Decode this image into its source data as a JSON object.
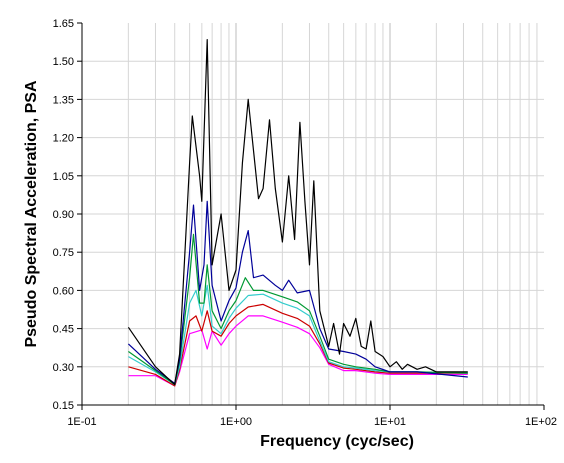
{
  "chart_data": {
    "type": "line",
    "xlabel": "Frequency (cyc/sec)",
    "ylabel": "Pseudo Spectral Acceleration, PSA",
    "x_scale": "log",
    "xlim": [
      0.1,
      100
    ],
    "ylim": [
      0.15,
      1.65
    ],
    "x_ticks": [
      0.1,
      1,
      10,
      100
    ],
    "x_tick_labels": [
      "1E-01",
      "1E+00",
      "1E+01",
      "1E+02"
    ],
    "y_ticks": [
      0.15,
      0.3,
      0.45,
      0.6,
      0.75,
      0.9,
      1.05,
      1.2,
      1.35,
      1.5,
      1.65
    ],
    "y_tick_labels": [
      "0.15",
      "0.30",
      "0.45",
      "0.60",
      "0.75",
      "0.90",
      "1.05",
      "1.20",
      "1.35",
      "1.50",
      "1.65"
    ],
    "grid": true,
    "series": [
      {
        "color": "#ff00ff",
        "points": [
          [
            0.2,
            0.265
          ],
          [
            0.3,
            0.265
          ],
          [
            0.4,
            0.225
          ],
          [
            0.43,
            0.28
          ],
          [
            0.5,
            0.43
          ],
          [
            0.6,
            0.445
          ],
          [
            0.65,
            0.37
          ],
          [
            0.7,
            0.44
          ],
          [
            0.8,
            0.385
          ],
          [
            0.9,
            0.43
          ],
          [
            1.0,
            0.46
          ],
          [
            1.2,
            0.5
          ],
          [
            1.5,
            0.5
          ],
          [
            2.0,
            0.475
          ],
          [
            2.5,
            0.455
          ],
          [
            3.0,
            0.43
          ],
          [
            3.5,
            0.375
          ],
          [
            4.0,
            0.31
          ],
          [
            5.0,
            0.285
          ],
          [
            6.0,
            0.285
          ],
          [
            8.0,
            0.275
          ],
          [
            10.0,
            0.27
          ],
          [
            15.0,
            0.27
          ],
          [
            20.0,
            0.27
          ],
          [
            32.0,
            0.27
          ]
        ]
      },
      {
        "color": "#cc0000",
        "points": [
          [
            0.2,
            0.3
          ],
          [
            0.3,
            0.27
          ],
          [
            0.4,
            0.225
          ],
          [
            0.43,
            0.29
          ],
          [
            0.5,
            0.48
          ],
          [
            0.55,
            0.5
          ],
          [
            0.6,
            0.44
          ],
          [
            0.65,
            0.52
          ],
          [
            0.7,
            0.44
          ],
          [
            0.8,
            0.42
          ],
          [
            0.9,
            0.47
          ],
          [
            1.0,
            0.5
          ],
          [
            1.2,
            0.535
          ],
          [
            1.5,
            0.545
          ],
          [
            2.0,
            0.51
          ],
          [
            2.5,
            0.49
          ],
          [
            3.0,
            0.46
          ],
          [
            3.5,
            0.39
          ],
          [
            4.0,
            0.315
          ],
          [
            5.0,
            0.295
          ],
          [
            6.0,
            0.29
          ],
          [
            8.0,
            0.28
          ],
          [
            10.0,
            0.275
          ],
          [
            15.0,
            0.275
          ],
          [
            32.0,
            0.275
          ]
        ]
      },
      {
        "color": "#33cccc",
        "points": [
          [
            0.2,
            0.34
          ],
          [
            0.3,
            0.28
          ],
          [
            0.4,
            0.23
          ],
          [
            0.43,
            0.3
          ],
          [
            0.5,
            0.55
          ],
          [
            0.55,
            0.6
          ],
          [
            0.6,
            0.5
          ],
          [
            0.65,
            0.62
          ],
          [
            0.7,
            0.46
          ],
          [
            0.8,
            0.43
          ],
          [
            0.9,
            0.49
          ],
          [
            1.0,
            0.53
          ],
          [
            1.2,
            0.58
          ],
          [
            1.5,
            0.585
          ],
          [
            2.0,
            0.55
          ],
          [
            2.5,
            0.53
          ],
          [
            3.0,
            0.5
          ],
          [
            3.5,
            0.4
          ],
          [
            4.0,
            0.32
          ],
          [
            5.0,
            0.3
          ],
          [
            6.0,
            0.295
          ],
          [
            8.0,
            0.285
          ],
          [
            10.0,
            0.28
          ],
          [
            15.0,
            0.28
          ],
          [
            32.0,
            0.275
          ]
        ]
      },
      {
        "color": "#009933",
        "points": [
          [
            0.2,
            0.36
          ],
          [
            0.3,
            0.285
          ],
          [
            0.4,
            0.23
          ],
          [
            0.43,
            0.32
          ],
          [
            0.5,
            0.65
          ],
          [
            0.53,
            0.82
          ],
          [
            0.58,
            0.55
          ],
          [
            0.62,
            0.55
          ],
          [
            0.65,
            0.7
          ],
          [
            0.7,
            0.52
          ],
          [
            0.8,
            0.45
          ],
          [
            0.9,
            0.52
          ],
          [
            1.0,
            0.56
          ],
          [
            1.15,
            0.65
          ],
          [
            1.3,
            0.6
          ],
          [
            1.5,
            0.6
          ],
          [
            2.0,
            0.575
          ],
          [
            2.5,
            0.555
          ],
          [
            3.0,
            0.52
          ],
          [
            3.5,
            0.42
          ],
          [
            4.0,
            0.33
          ],
          [
            5.0,
            0.31
          ],
          [
            6.0,
            0.3
          ],
          [
            8.0,
            0.29
          ],
          [
            10.0,
            0.28
          ],
          [
            15.0,
            0.28
          ],
          [
            32.0,
            0.275
          ]
        ]
      },
      {
        "color": "#000099",
        "points": [
          [
            0.2,
            0.39
          ],
          [
            0.3,
            0.29
          ],
          [
            0.4,
            0.235
          ],
          [
            0.43,
            0.33
          ],
          [
            0.5,
            0.75
          ],
          [
            0.53,
            0.935
          ],
          [
            0.58,
            0.6
          ],
          [
            0.62,
            0.7
          ],
          [
            0.65,
            0.95
          ],
          [
            0.7,
            0.62
          ],
          [
            0.8,
            0.48
          ],
          [
            0.9,
            0.56
          ],
          [
            1.0,
            0.61
          ],
          [
            1.1,
            0.75
          ],
          [
            1.2,
            0.835
          ],
          [
            1.3,
            0.65
          ],
          [
            1.5,
            0.66
          ],
          [
            1.8,
            0.62
          ],
          [
            2.0,
            0.6
          ],
          [
            2.2,
            0.64
          ],
          [
            2.5,
            0.59
          ],
          [
            3.0,
            0.6
          ],
          [
            3.5,
            0.45
          ],
          [
            4.0,
            0.37
          ],
          [
            5.0,
            0.36
          ],
          [
            6.0,
            0.35
          ],
          [
            7.0,
            0.33
          ],
          [
            8.0,
            0.3
          ],
          [
            10.0,
            0.28
          ],
          [
            15.0,
            0.28
          ],
          [
            32.0,
            0.26
          ]
        ]
      },
      {
        "color": "#000000",
        "points": [
          [
            0.2,
            0.455
          ],
          [
            0.3,
            0.3
          ],
          [
            0.4,
            0.23
          ],
          [
            0.43,
            0.35
          ],
          [
            0.5,
            1.1
          ],
          [
            0.52,
            1.285
          ],
          [
            0.58,
            1.05
          ],
          [
            0.6,
            0.95
          ],
          [
            0.65,
            1.585
          ],
          [
            0.7,
            0.7
          ],
          [
            0.8,
            0.9
          ],
          [
            0.9,
            0.6
          ],
          [
            1.0,
            0.68
          ],
          [
            1.1,
            1.1
          ],
          [
            1.2,
            1.35
          ],
          [
            1.4,
            0.96
          ],
          [
            1.5,
            1.0
          ],
          [
            1.65,
            1.27
          ],
          [
            1.8,
            1.0
          ],
          [
            2.0,
            0.79
          ],
          [
            2.2,
            1.05
          ],
          [
            2.4,
            0.8
          ],
          [
            2.6,
            1.26
          ],
          [
            2.8,
            0.95
          ],
          [
            3.0,
            0.7
          ],
          [
            3.2,
            1.03
          ],
          [
            3.5,
            0.52
          ],
          [
            4.0,
            0.38
          ],
          [
            4.3,
            0.47
          ],
          [
            4.7,
            0.35
          ],
          [
            5.0,
            0.47
          ],
          [
            5.5,
            0.42
          ],
          [
            6.0,
            0.49
          ],
          [
            6.5,
            0.38
          ],
          [
            7.0,
            0.37
          ],
          [
            7.5,
            0.48
          ],
          [
            8.0,
            0.36
          ],
          [
            9.0,
            0.34
          ],
          [
            10.0,
            0.3
          ],
          [
            11.0,
            0.32
          ],
          [
            12.0,
            0.29
          ],
          [
            13.0,
            0.31
          ],
          [
            15.0,
            0.29
          ],
          [
            17.0,
            0.3
          ],
          [
            20.0,
            0.28
          ],
          [
            32.0,
            0.28
          ]
        ]
      }
    ]
  }
}
